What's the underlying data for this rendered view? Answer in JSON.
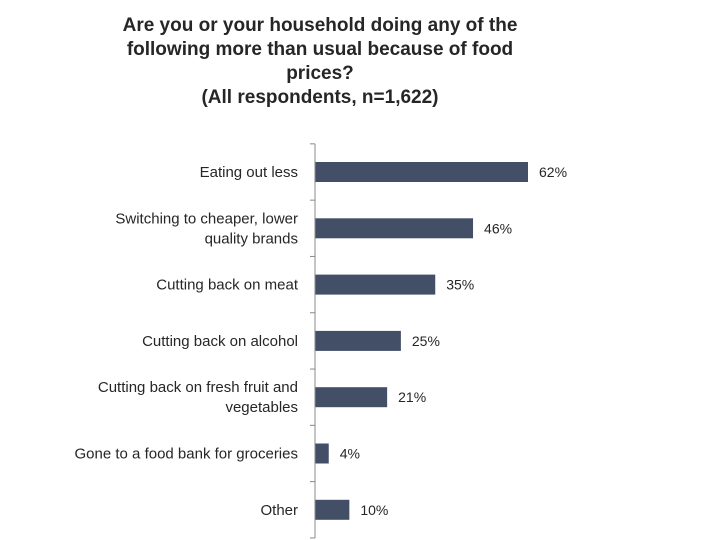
{
  "chart_data": {
    "type": "bar",
    "orientation": "horizontal",
    "title": "Are you or your household doing any of the following more than usual because of food prices?",
    "title_lines": [
      "Are you or your household doing any of the",
      "following more than usual because of food",
      "prices?"
    ],
    "subtitle": "(All respondents, n=1,622)",
    "categories": [
      [
        "Eating out less"
      ],
      [
        "Switching to cheaper, lower",
        "quality brands"
      ],
      [
        "Cutting back on meat"
      ],
      [
        "Cutting back on alcohol"
      ],
      [
        "Cutting back on fresh fruit and",
        "vegetables"
      ],
      [
        "Gone to a food bank for groceries"
      ],
      [
        "Other"
      ]
    ],
    "values": [
      62,
      46,
      35,
      25,
      21,
      4,
      10
    ],
    "value_labels": [
      "62%",
      "46%",
      "35%",
      "25%",
      "21%",
      "4%",
      "10%"
    ],
    "xlim": [
      0,
      100
    ],
    "grid": false,
    "legend": "none",
    "bar_color": "#434f67",
    "axis_color": "#888888"
  }
}
